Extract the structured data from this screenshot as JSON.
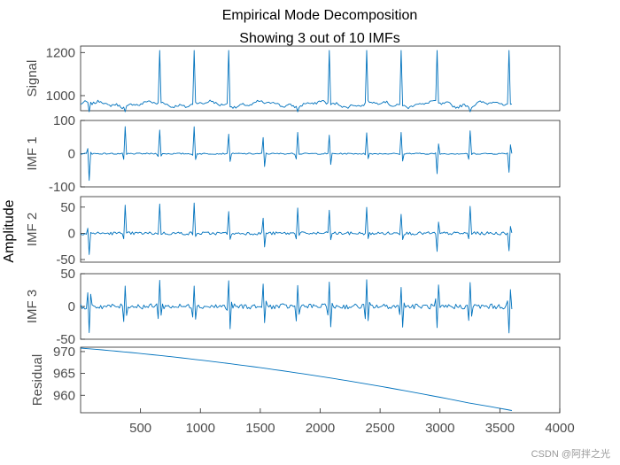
{
  "chart_data": {
    "type": "line",
    "title": "Empirical Mode Decomposition",
    "subtitle": "Showing 3 out of 10 IMFs",
    "ylabel": "Amplitude",
    "xlim": [
      0,
      4000
    ],
    "x_ticks": [
      500,
      1000,
      1500,
      2000,
      2500,
      3000,
      3500,
      4000
    ],
    "line_color": "#0072BD",
    "n_samples": 3600,
    "peak_positions": [
      70,
      370,
      660,
      950,
      1240,
      1530,
      1810,
      2080,
      2390,
      2680,
      2980,
      3250,
      3580
    ],
    "panels": [
      {
        "name": "Signal",
        "ylim": [
          930,
          1230
        ],
        "y_ticks": [
          1000,
          1200
        ],
        "baseline": 960,
        "peak_high": 1210,
        "peak_low": 925
      },
      {
        "name": "IMF 1",
        "ylim": [
          -100,
          100
        ],
        "y_ticks": [
          -100,
          0,
          100
        ],
        "baseline": 0,
        "peak_high": 95,
        "peak_low": -95
      },
      {
        "name": "IMF 2",
        "ylim": [
          -55,
          70
        ],
        "y_ticks": [
          -50,
          0,
          50
        ],
        "baseline": 0,
        "peak_high": 62,
        "peak_low": -50
      },
      {
        "name": "IMF 3",
        "ylim": [
          -50,
          50
        ],
        "y_ticks": [
          -50,
          0,
          50
        ],
        "baseline": 0,
        "peak_high": 45,
        "peak_low": -45
      },
      {
        "name": "Residual",
        "ylim": [
          956,
          971
        ],
        "y_ticks": [
          960,
          965,
          970
        ],
        "start": 970.8,
        "end": 956.2
      }
    ]
  },
  "watermark": "CSDN @阿拌之光"
}
